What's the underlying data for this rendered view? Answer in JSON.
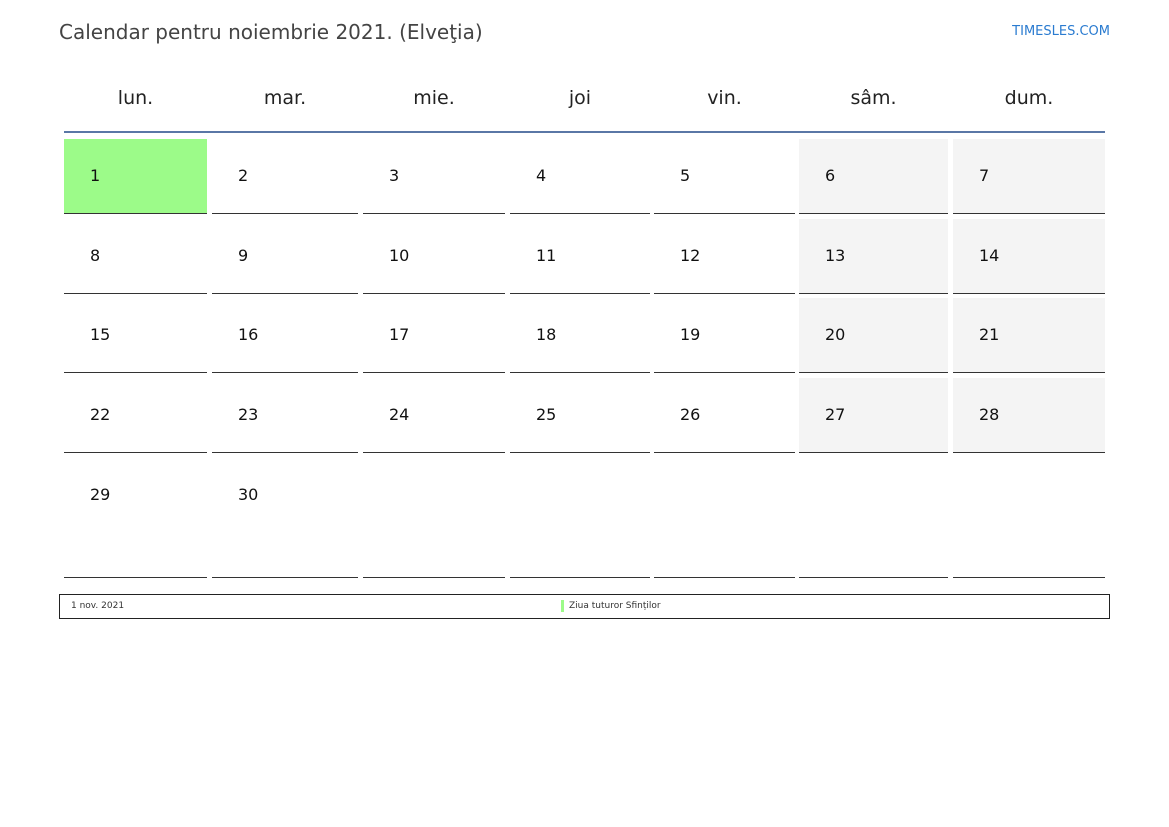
{
  "header": {
    "title": "Calendar pentru noiembrie 2021. (Elveţia)",
    "brand": "TIMESLES.COM"
  },
  "weekdays": [
    "lun.",
    "mar.",
    "mie.",
    "joi",
    "vin.",
    "sâm.",
    "dum."
  ],
  "weeks": [
    [
      "1",
      "2",
      "3",
      "4",
      "5",
      "6",
      "7"
    ],
    [
      "8",
      "9",
      "10",
      "11",
      "12",
      "13",
      "14"
    ],
    [
      "15",
      "16",
      "17",
      "18",
      "19",
      "20",
      "21"
    ],
    [
      "22",
      "23",
      "24",
      "25",
      "26",
      "27",
      "28"
    ],
    [
      "29",
      "30",
      "",
      "",
      "",
      "",
      ""
    ]
  ],
  "holiday_day": "1",
  "colors": {
    "holiday": "#9cfb89",
    "weekend": "#f4f4f4",
    "accent_line": "#5a77a6",
    "brand": "#2a7bd0"
  },
  "legend": {
    "date": "1 nov. 2021",
    "name": "Ziua tuturor Sfinților"
  }
}
